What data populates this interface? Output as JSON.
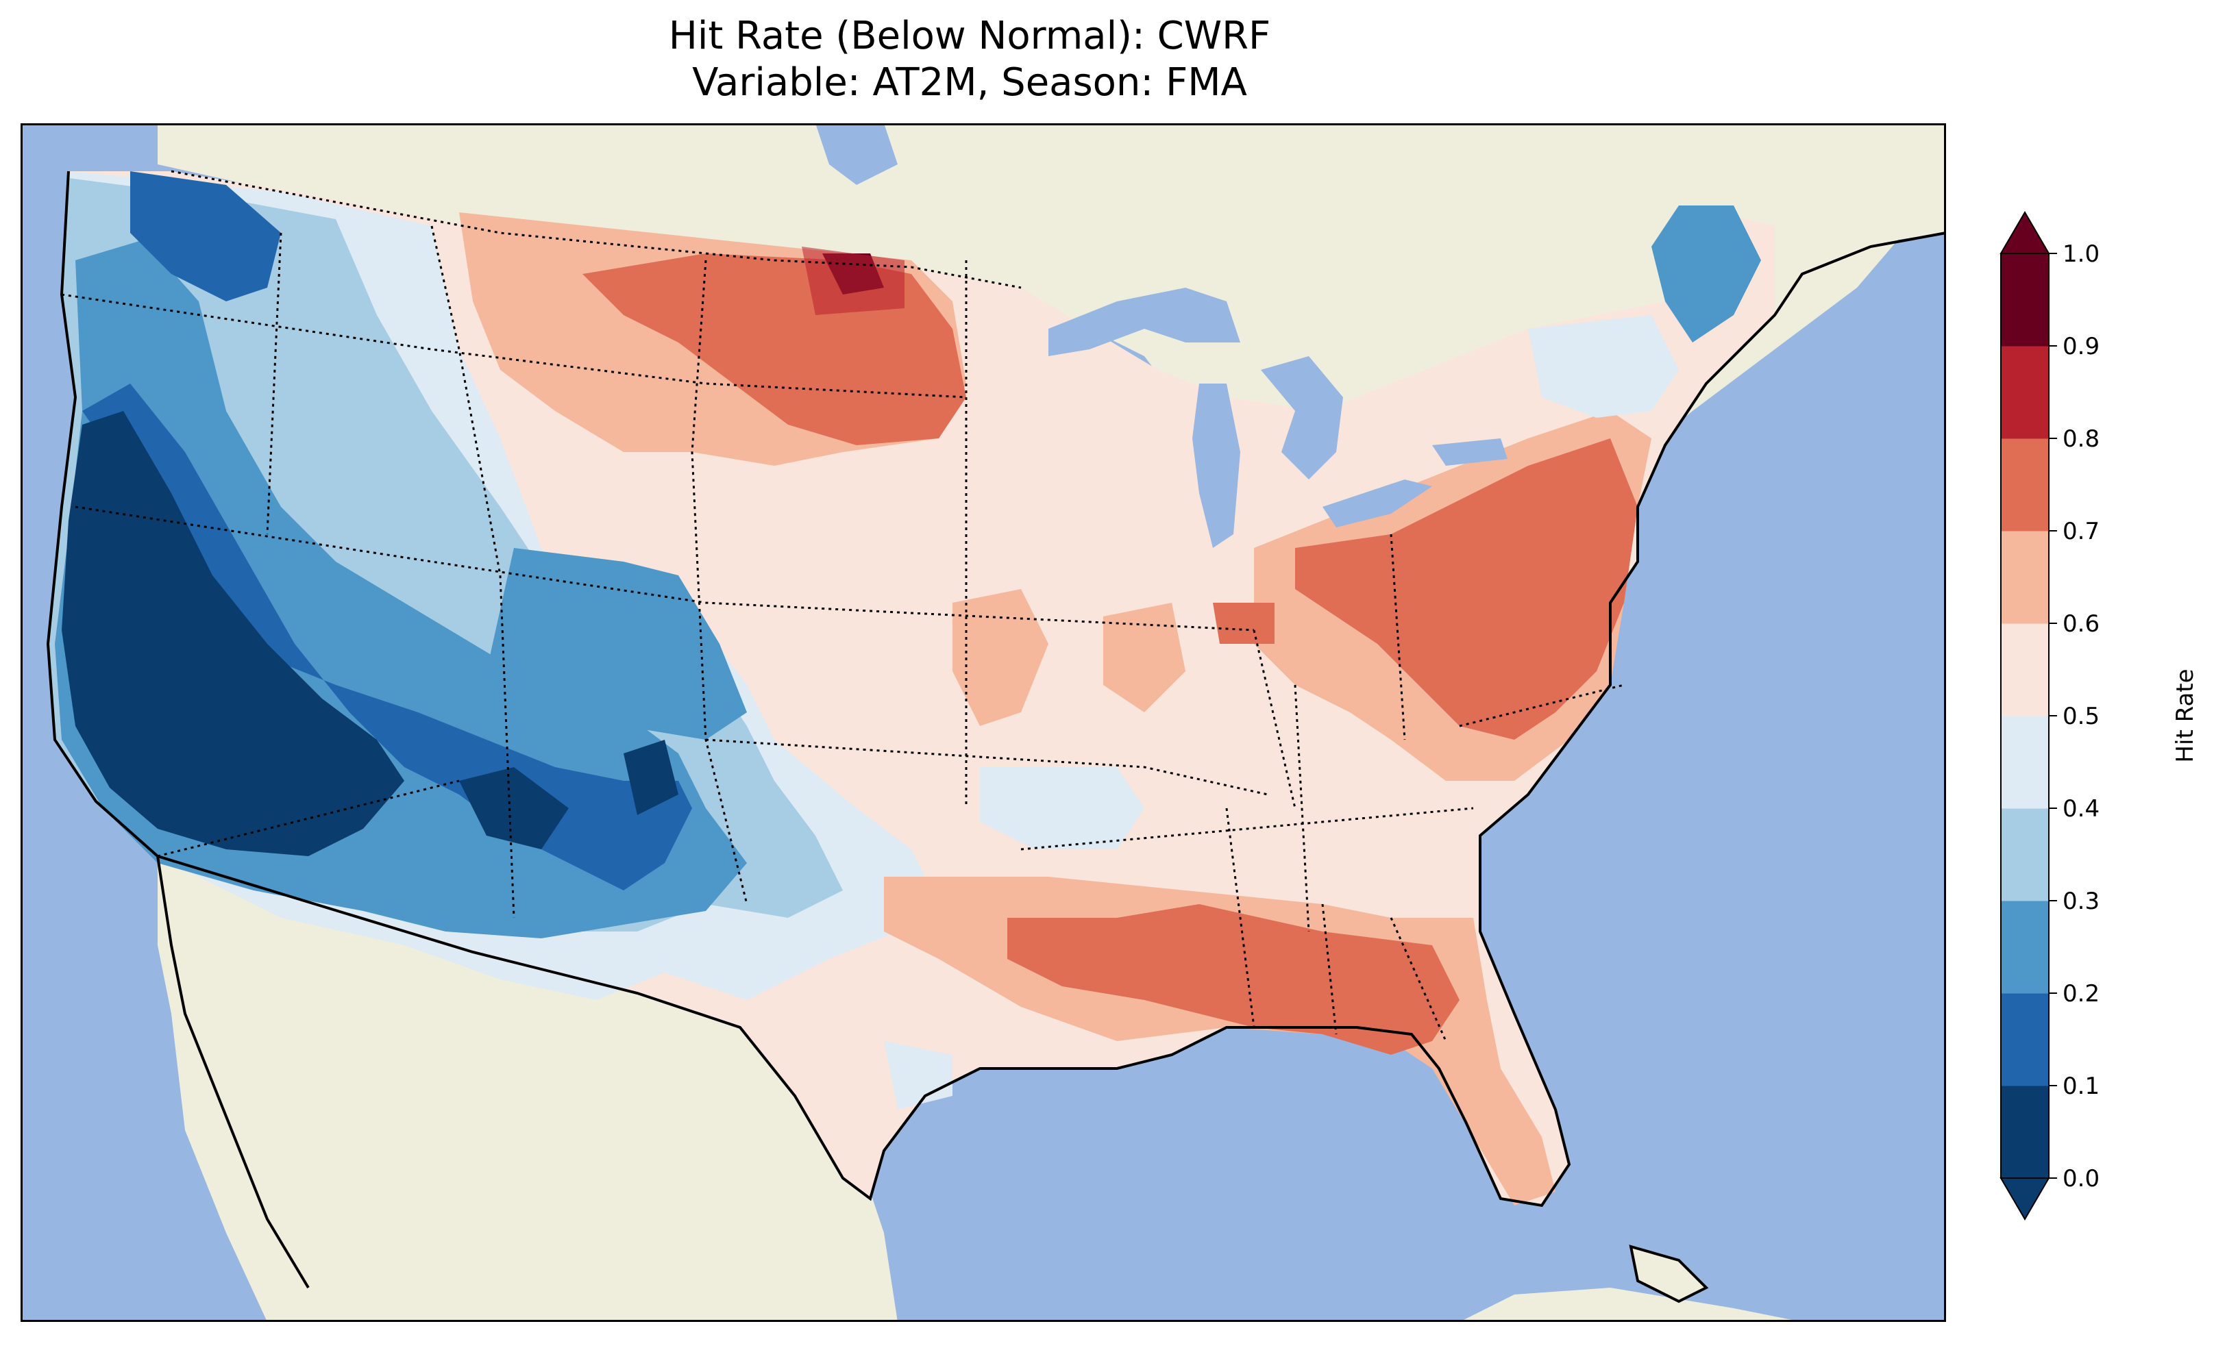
{
  "title": {
    "line1": "Hit Rate (Below Normal): CWRF",
    "line2": "Variable: AT2M, Season: FMA"
  },
  "colorbar": {
    "label": "Hit Rate",
    "ticks": [
      "0.0",
      "0.1",
      "0.2",
      "0.3",
      "0.4",
      "0.5",
      "0.6",
      "0.7",
      "0.8",
      "0.9",
      "1.0"
    ],
    "levels": [
      0.0,
      0.1,
      0.2,
      0.3,
      0.4,
      0.5,
      0.6,
      0.7,
      0.8,
      0.9,
      1.0
    ],
    "colors": [
      "#053061",
      "#2166ac",
      "#4393c3",
      "#92c5de",
      "#d1e5f0",
      "#f7f7f7",
      "#fddbc7",
      "#f4a582",
      "#d6604d",
      "#b2182b",
      "#67001f"
    ],
    "bin_colors": [
      "#0a3d6e",
      "#2166ac",
      "#4d97c9",
      "#a6cde3",
      "#deebf4",
      "#f9e5dc",
      "#f5b89c",
      "#e06e55",
      "#b8212e",
      "#67001f"
    ],
    "extend": "both"
  },
  "map": {
    "ocean_color": "#97b6e1",
    "land_color": "#efeedc",
    "region": "Contiguous United States",
    "field_values_legend": "Hit Rate"
  }
}
